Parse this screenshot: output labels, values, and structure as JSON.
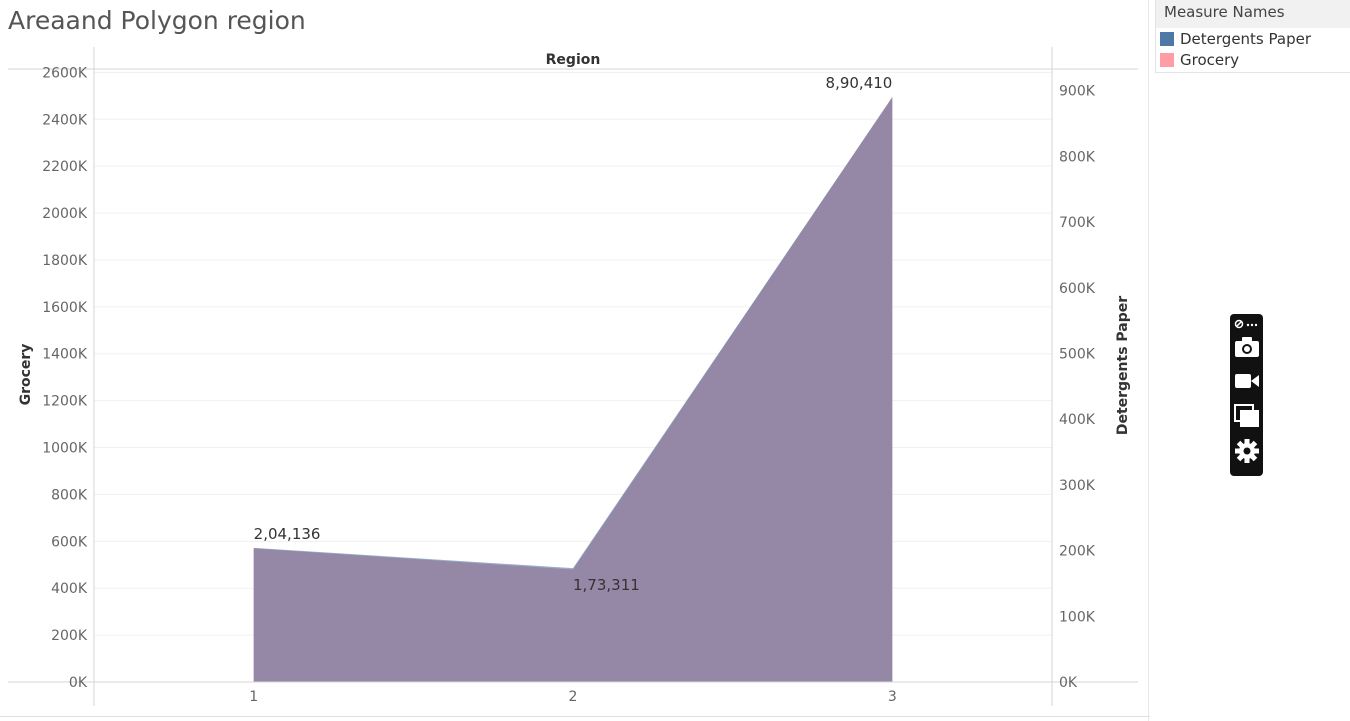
{
  "title": "Areaand Polygon region",
  "legend": {
    "title": "Measure Names",
    "items": [
      {
        "label": "Detergents Paper",
        "color": "#4e79a7"
      },
      {
        "label": "Grocery",
        "color": "#ff9da7"
      }
    ]
  },
  "toolbar": {
    "icons": [
      "pin-icon",
      "more-icon",
      "camera-icon",
      "video-icon",
      "windows-icon",
      "gear-icon"
    ]
  },
  "chart_data": {
    "type": "area",
    "header": "Region",
    "categories": [
      "1",
      "2",
      "3"
    ],
    "x": [
      1,
      2,
      3
    ],
    "series": [
      {
        "name": "Grocery",
        "axis": "left",
        "color": "#ff9da7",
        "values": [
          570000,
          480000,
          2495000
        ]
      },
      {
        "name": "Detergents Paper",
        "axis": "right",
        "color": "#4e79a7",
        "values": [
          204136,
          173311,
          890410
        ]
      }
    ],
    "data_labels": [
      {
        "series": "Detergents Paper",
        "x": 1,
        "text": "2,04,136"
      },
      {
        "series": "Detergents Paper",
        "x": 2,
        "text": "1,73,311"
      },
      {
        "series": "Detergents Paper",
        "x": 3,
        "text": "8,90,410"
      }
    ],
    "ylabel_left": "Grocery",
    "ylabel_right": "Detergents Paper",
    "ylim_left": [
      0,
      2600000
    ],
    "ylim_right": [
      0,
      900000
    ],
    "left_ticks": [
      "0K",
      "200K",
      "400K",
      "600K",
      "800K",
      "1000K",
      "1200K",
      "1400K",
      "1600K",
      "1800K",
      "2000K",
      "2200K",
      "2400K",
      "2600K"
    ],
    "left_tick_values": [
      0,
      200000,
      400000,
      600000,
      800000,
      1000000,
      1200000,
      1400000,
      1600000,
      1800000,
      2000000,
      2200000,
      2400000,
      2600000
    ],
    "right_ticks": [
      "0K",
      "100K",
      "200K",
      "300K",
      "400K",
      "500K",
      "600K",
      "700K",
      "800K",
      "900K"
    ],
    "right_tick_values": [
      0,
      100000,
      200000,
      300000,
      400000,
      500000,
      600000,
      700000,
      800000,
      900000
    ],
    "grid": true,
    "legend_position": "top-right"
  }
}
